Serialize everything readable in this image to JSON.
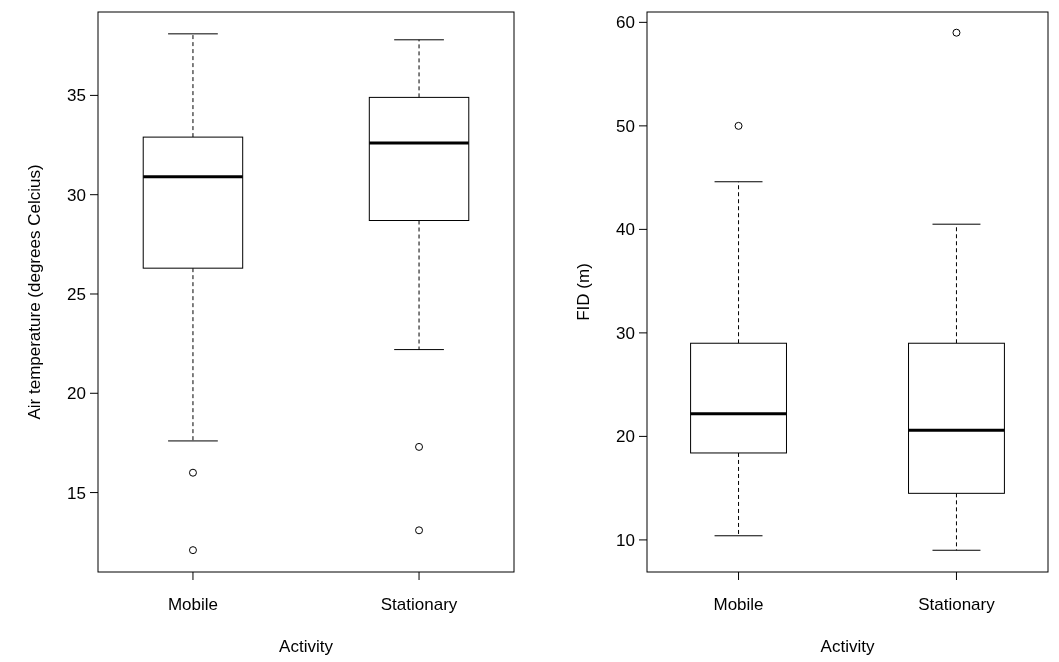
{
  "chart_data": [
    {
      "type": "box",
      "xlabel": "Activity",
      "ylabel": "Air temperature (degrees Celcius)",
      "categories": [
        "Mobile",
        "Stationary"
      ],
      "ylim": [
        11.0,
        39.2
      ],
      "yticks": [
        15,
        20,
        25,
        30,
        35
      ],
      "boxes": [
        {
          "low": 17.6,
          "q1": 26.3,
          "median": 30.9,
          "q3": 32.9,
          "high": 38.1,
          "outliers": [
            16.0,
            12.1
          ]
        },
        {
          "low": 22.2,
          "q1": 28.7,
          "median": 32.6,
          "q3": 34.9,
          "high": 37.8,
          "outliers": [
            17.3,
            13.1
          ]
        }
      ]
    },
    {
      "type": "box",
      "xlabel": "Activity",
      "ylabel": "FID (m)",
      "categories": [
        "Mobile",
        "Stationary"
      ],
      "ylim": [
        6.9,
        61
      ],
      "yticks": [
        10,
        20,
        30,
        40,
        50,
        60
      ],
      "boxes": [
        {
          "low": 10.4,
          "q1": 18.4,
          "median": 22.2,
          "q3": 29.0,
          "high": 44.6,
          "outliers": [
            50
          ]
        },
        {
          "low": 9.0,
          "q1": 14.5,
          "median": 20.6,
          "q3": 29.0,
          "high": 40.5,
          "outliers": [
            59
          ]
        }
      ]
    }
  ]
}
